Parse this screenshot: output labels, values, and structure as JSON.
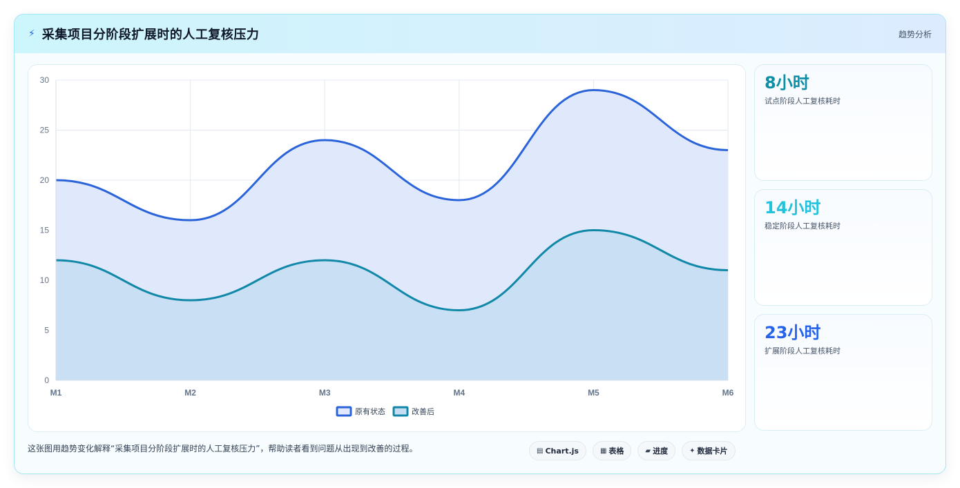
{
  "header": {
    "icon": "lightning-icon",
    "title": "采集项目分阶段扩展时的人工复核压力",
    "tag": "趋势分析"
  },
  "chart_data": {
    "type": "area",
    "categories": [
      "M1",
      "M2",
      "M3",
      "M4",
      "M5",
      "M6"
    ],
    "ylim": [
      0,
      30
    ],
    "yticks": [
      0,
      5,
      10,
      15,
      20,
      25,
      30
    ],
    "grid": true,
    "legend_position": "bottom",
    "series": [
      {
        "name": "原有状态",
        "values": [
          20,
          16,
          24,
          18,
          29,
          23
        ],
        "color": "#2b63d9",
        "fill": "#dfe9fb"
      },
      {
        "name": "改善后",
        "values": [
          12,
          8,
          12,
          7,
          15,
          11
        ],
        "color": "#1288a8",
        "fill": "#c4ddf2"
      }
    ]
  },
  "stats": [
    {
      "value": "8小时",
      "label": "试点阶段人工复核耗时",
      "color": "#0e8fa8"
    },
    {
      "value": "14小时",
      "label": "稳定阶段人工复核耗时",
      "color": "#22c3dd"
    },
    {
      "value": "23小时",
      "label": "扩展阶段人工复核耗时",
      "color": "#2563eb"
    }
  ],
  "footer": {
    "text": "这张图用趋势变化解释“采集项目分阶段扩展时的人工复核压力”，帮助读者看到问题从出现到改善的过程。",
    "pills": [
      {
        "icon": "▤",
        "label": "Chart.js"
      },
      {
        "icon": "▦",
        "label": "表格"
      },
      {
        "icon": "▰",
        "label": "进度"
      },
      {
        "icon": "✦",
        "label": "数据卡片"
      }
    ]
  }
}
